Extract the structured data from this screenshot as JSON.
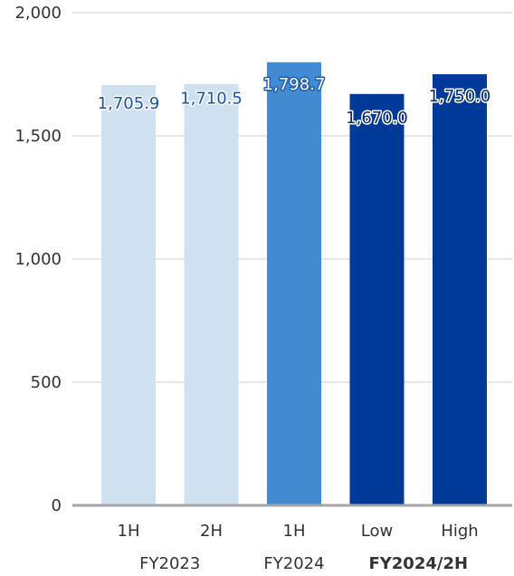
{
  "chart_data": {
    "type": "bar",
    "ylim": [
      0,
      2000
    ],
    "yticks": [
      0,
      500,
      1000,
      1500,
      2000
    ],
    "ytick_labels": [
      "0",
      "500",
      "1,000",
      "1,500",
      "2,000"
    ],
    "grid": true,
    "categories": [
      "1H",
      "2H",
      "1H",
      "Low",
      "High"
    ],
    "values": [
      1705.9,
      1710.5,
      1798.7,
      1670.0,
      1750.0
    ],
    "data_labels": [
      "1,705.9",
      "1,710.5",
      "1,798.7",
      "1,670.0",
      "1,750.0"
    ],
    "bar_colors": [
      "#cfe0f1",
      "#cfe0f1",
      "#428bd0",
      "#003a99",
      "#003a99"
    ],
    "groups": [
      {
        "label": "FY2023",
        "bold": false,
        "span": [
          0,
          1
        ]
      },
      {
        "label": "FY2024",
        "bold": false,
        "span": [
          2,
          2
        ]
      },
      {
        "label": "FY2024/2H",
        "bold": true,
        "span": [
          3,
          4
        ]
      }
    ]
  }
}
